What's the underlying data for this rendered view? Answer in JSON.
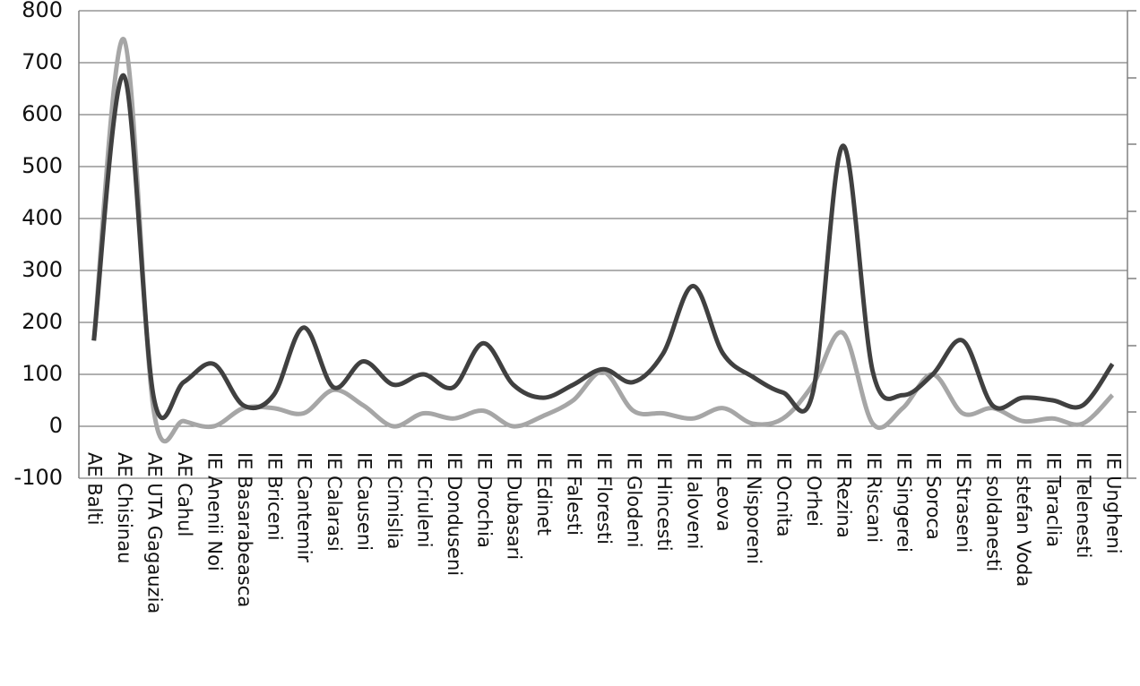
{
  "chart_data": {
    "type": "line",
    "categories": [
      "AE Balti",
      "AE Chisinau",
      "AE UTA Gagauzia",
      "AE Cahul",
      "IE Anenii Noi",
      "IE Basarabeasca",
      "IE Briceni",
      "IE Cantemir",
      "IE Calarasi",
      "IE Causeni",
      "IE Cimislia",
      "IE Criuleni",
      "IE Donduseni",
      "IE Drochia",
      "IE Dubasari",
      "IE Edinet",
      "IE Falesti",
      "IE Floresti",
      "IE Glodeni",
      "IE Hincesti",
      "IE Ialoveni",
      "IE Leova",
      "IE Nisporeni",
      "IE Ocnita",
      "IE Orhei",
      "IE Rezina",
      "IE Riscani",
      "IE Singerei",
      "IE Soroca",
      "IE Straseni",
      "IE soldanesti",
      "IE stefan Voda",
      "IE Taraclia",
      "IE Telenesti",
      "IE Ungheni"
    ],
    "series": [
      {
        "color": "#a6a6a6",
        "values": [
          165,
          745,
          30,
          10,
          0,
          35,
          35,
          25,
          70,
          40,
          0,
          25,
          15,
          30,
          0,
          20,
          50,
          105,
          30,
          25,
          15,
          35,
          5,
          15,
          80,
          180,
          5,
          35,
          100,
          25,
          35,
          10,
          15,
          5,
          60
        ]
      },
      {
        "color": "#404040",
        "values": [
          165,
          675,
          55,
          85,
          120,
          40,
          60,
          190,
          75,
          125,
          80,
          100,
          75,
          160,
          80,
          55,
          80,
          110,
          85,
          140,
          270,
          140,
          95,
          65,
          65,
          540,
          105,
          60,
          100,
          165,
          40,
          55,
          50,
          40,
          120
        ]
      }
    ],
    "ylim": [
      -100,
      800
    ],
    "yticks": [
      -100,
      0,
      100,
      200,
      300,
      400,
      500,
      600,
      700,
      800
    ],
    "grid": true
  }
}
